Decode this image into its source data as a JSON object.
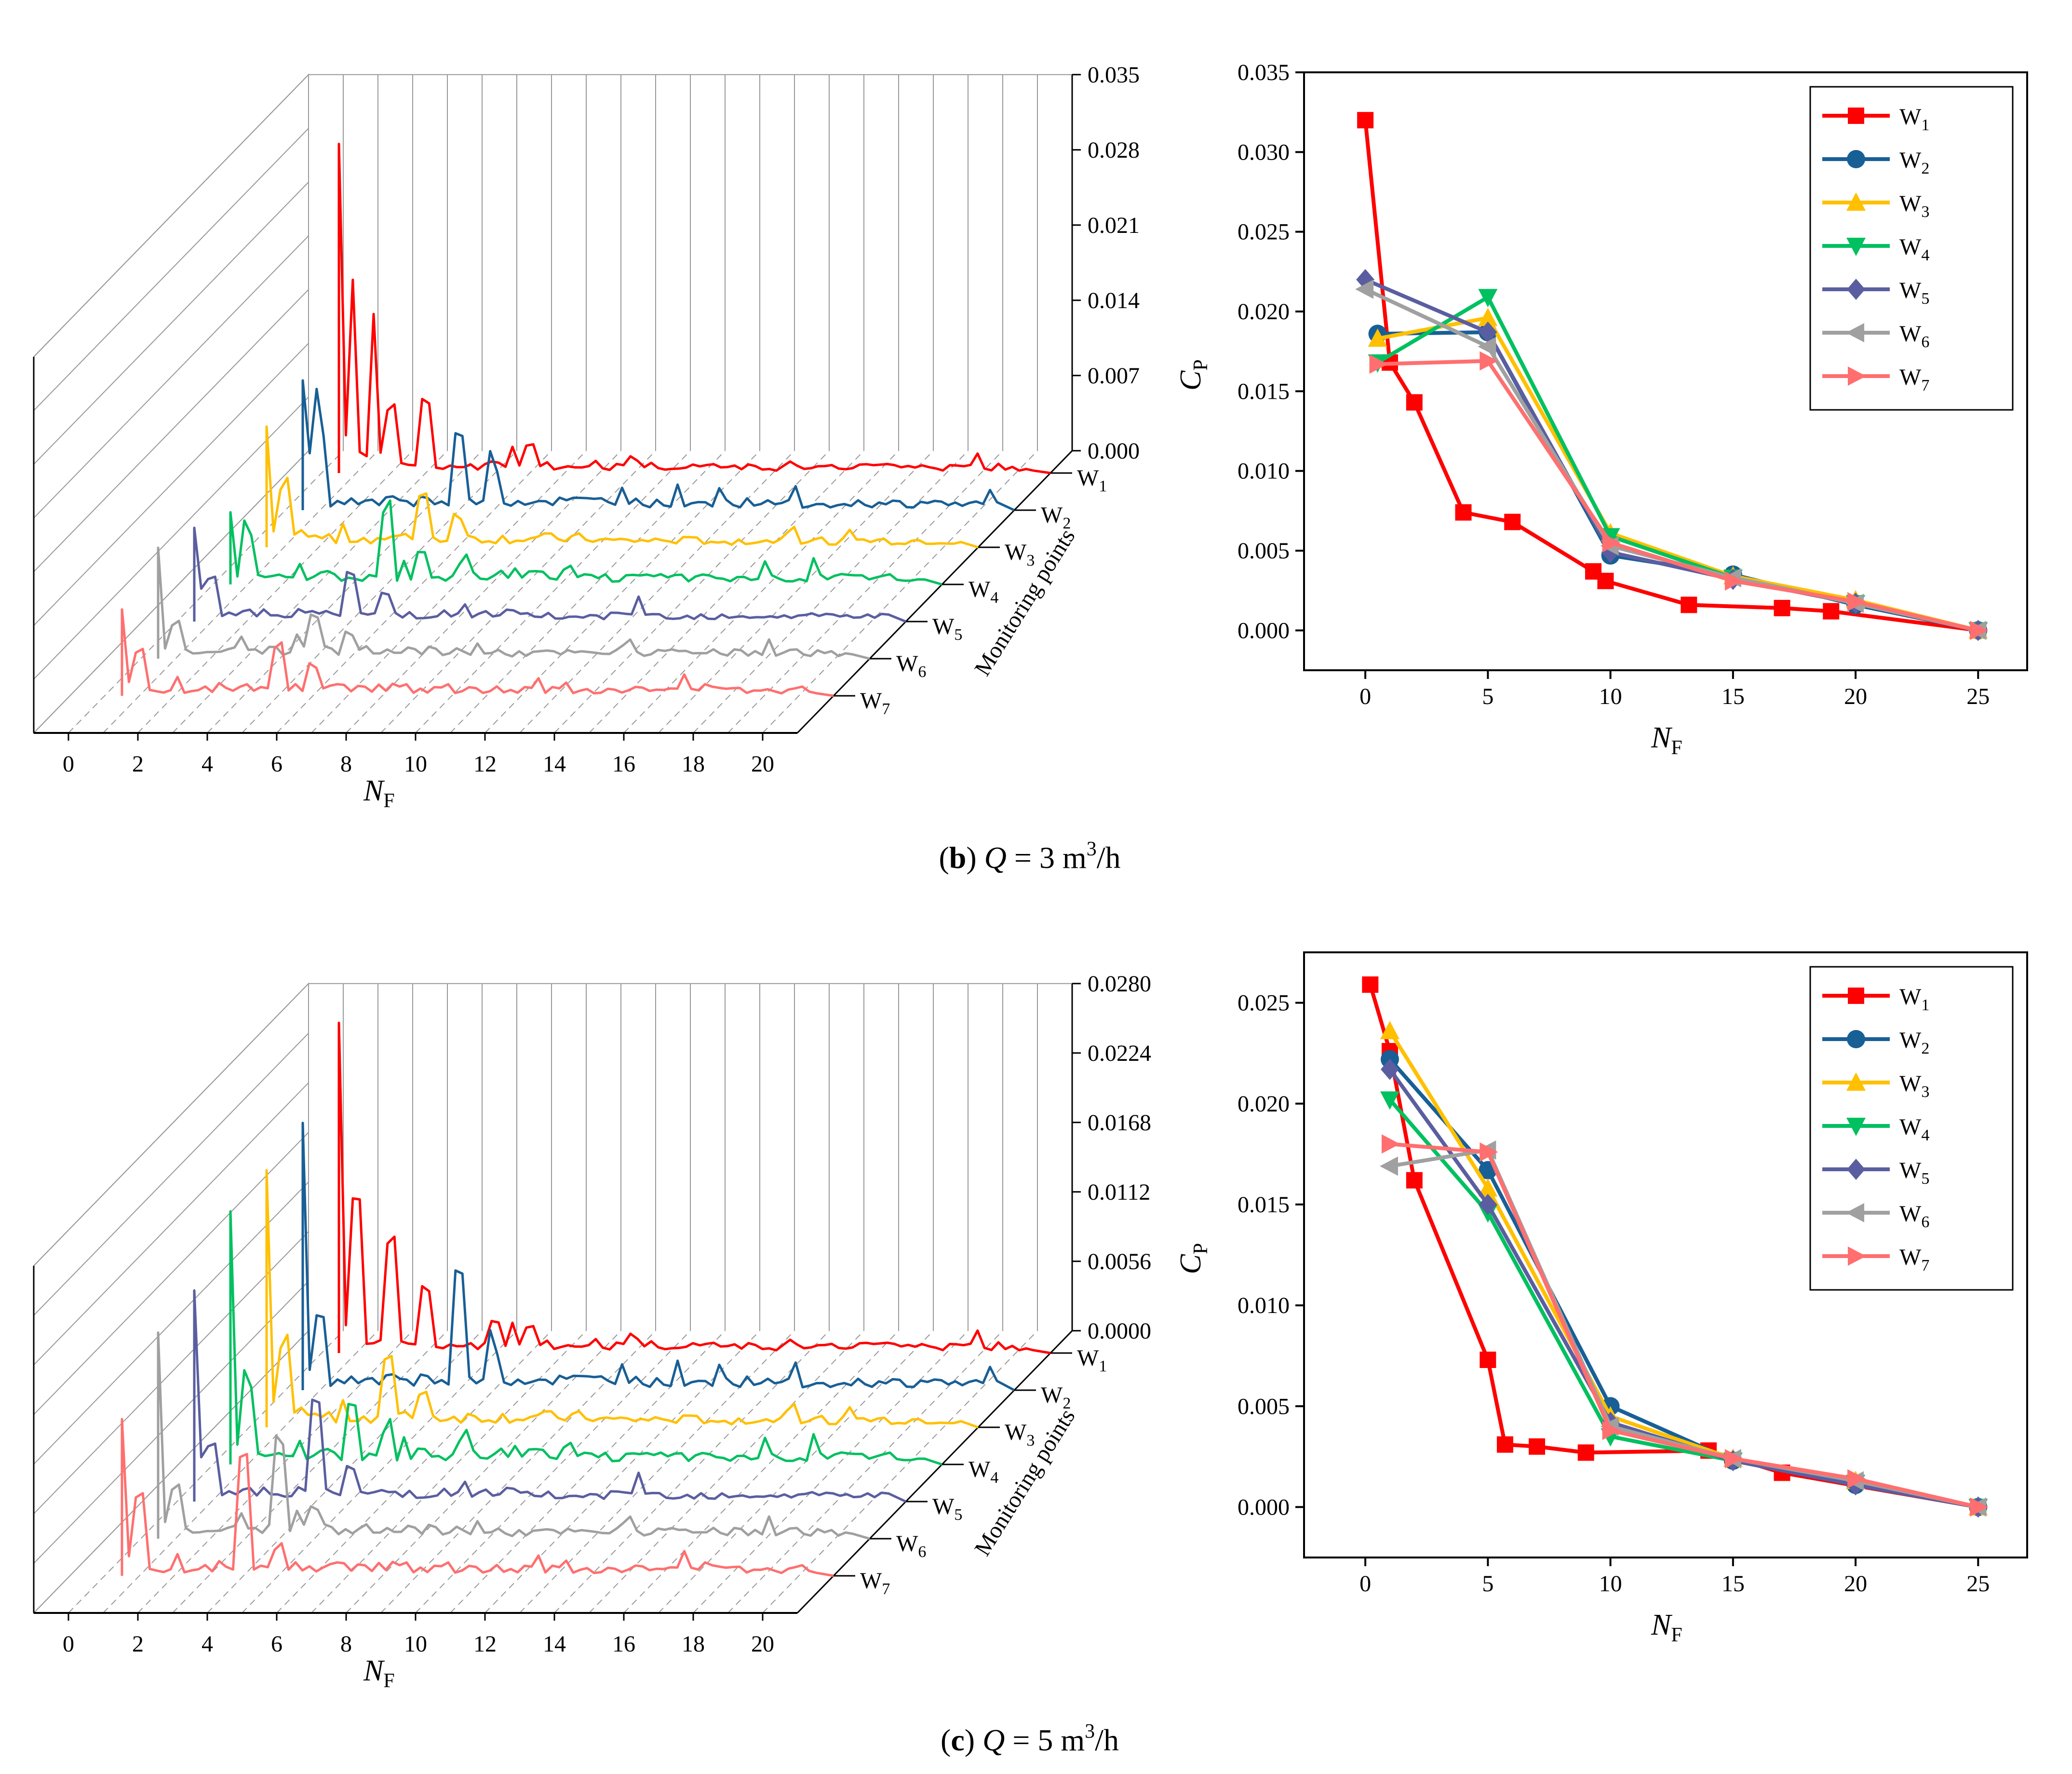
{
  "figure": {
    "captions": [
      {
        "letter": "b",
        "prefix": "(",
        "close": ")",
        "q": "Q",
        "equals": " = 3 m",
        "sup": "3",
        "unit": "/h"
      },
      {
        "letter": "c",
        "prefix": "(",
        "close": ")",
        "q": "Q",
        "equals": " = 5 m",
        "sup": "3",
        "unit": "/h"
      }
    ],
    "waterfall_axis_title": "Monitoring points",
    "axis_symbols": {
      "nf_main": "N",
      "nf_sub": "F",
      "cp_main": "C",
      "cp_sub": "P"
    },
    "colors": {
      "W1": "#ff0000",
      "W2": "#185f96",
      "W3": "#ffc000",
      "W4": "#00c060",
      "W5": "#5a5ea0",
      "W6": "#a0a0a0",
      "W7": "#ff6f6f",
      "axis": "#000000",
      "grid": "#999999"
    }
  },
  "chart_data": [
    {
      "id": "b_waterfall",
      "type": "line",
      "subtype": "waterfall-3d",
      "title": "(b) Q = 3 m3/h",
      "xlabel": "NF",
      "zlabel": "Monitoring points",
      "xlim": [
        -1,
        21
      ],
      "x_ticks": [
        "0",
        "2",
        "4",
        "6",
        "8",
        "10",
        "12",
        "14",
        "16",
        "18",
        "20"
      ],
      "zlim": [
        0,
        0.035
      ],
      "z_ticks": [
        "0.000",
        "0.007",
        "0.014",
        "0.021",
        "0.028",
        "0.035"
      ],
      "series_names": [
        "W1",
        "W2",
        "W3",
        "W4",
        "W5",
        "W6",
        "W7"
      ],
      "series": [
        {
          "name": "W1",
          "peaks": [
            [
              0.5,
              0.029
            ],
            [
              0.9,
              0.017
            ],
            [
              1.5,
              0.014
            ],
            [
              2,
              0.011
            ],
            [
              3,
              0.012
            ],
            [
              6,
              0.0045
            ]
          ],
          "floor": 0.0008
        },
        {
          "name": "W2",
          "peaks": [
            [
              0.5,
              0.0115
            ],
            [
              0.8,
              0.0085
            ],
            [
              1.0,
              0.012
            ],
            [
              5,
              0.012
            ],
            [
              6,
              0.0055
            ]
          ],
          "floor": 0.0009
        },
        {
          "name": "W3",
          "peaks": [
            [
              0.5,
              0.01
            ],
            [
              1.0,
              0.0085
            ],
            [
              5,
              0.0085
            ],
            [
              6,
              0.0045
            ]
          ],
          "floor": 0.0009
        },
        {
          "name": "W4",
          "peaks": [
            [
              0.5,
              0.0058
            ],
            [
              1.0,
              0.0072
            ],
            [
              5,
              0.0125
            ],
            [
              6,
              0.0035
            ]
          ],
          "floor": 0.0009
        },
        {
          "name": "W5",
          "peaks": [
            [
              0.5,
              0.0082
            ],
            [
              1.0,
              0.0072
            ],
            [
              5,
              0.007
            ],
            [
              6,
              0.0035
            ]
          ],
          "floor": 0.0008
        },
        {
          "name": "W6",
          "peaks": [
            [
              0.5,
              0.0092
            ],
            [
              1.0,
              0.0055
            ],
            [
              5,
              0.0065
            ],
            [
              6,
              0.0035
            ]
          ],
          "floor": 0.0008
        },
        {
          "name": "W7",
          "peaks": [
            [
              0.5,
              0.0072
            ],
            [
              1.0,
              0.0072
            ],
            [
              5,
              0.0082
            ],
            [
              6,
              0.0045
            ]
          ],
          "floor": 0.0008
        }
      ]
    },
    {
      "id": "b_cp",
      "type": "line",
      "title": "(b) Q = 3 m3/h",
      "xlabel": "NF",
      "ylabel": "CP",
      "xlim": [
        -2.5,
        27
      ],
      "ylim": [
        -0.0025,
        0.035
      ],
      "x_ticks": [
        0,
        5,
        10,
        15,
        20,
        25
      ],
      "y_ticks": [
        "0.000",
        "0.005",
        "0.010",
        "0.015",
        "0.020",
        "0.025",
        "0.030",
        "0.035"
      ],
      "legend": "top-right",
      "series": [
        {
          "name": "W1",
          "marker": "square",
          "x": [
            0,
            1,
            2,
            4,
            6,
            9.3,
            9.8,
            13.2,
            17,
            19,
            25
          ],
          "y": [
            0.032,
            0.0168,
            0.0143,
            0.0074,
            0.0068,
            0.0037,
            0.0031,
            0.0016,
            0.0014,
            0.0012,
            0.0
          ]
        },
        {
          "name": "W2",
          "marker": "circle",
          "x": [
            0.5,
            5,
            10,
            15,
            20,
            25
          ],
          "y": [
            0.0186,
            0.0187,
            0.0047,
            0.0035,
            0.0016,
            0.0
          ]
        },
        {
          "name": "W3",
          "marker": "triangle-up",
          "x": [
            0.5,
            5,
            10,
            15,
            20,
            25
          ],
          "y": [
            0.0183,
            0.0196,
            0.0061,
            0.0034,
            0.0019,
            0.0
          ]
        },
        {
          "name": "W4",
          "marker": "triangle-down",
          "x": [
            0.5,
            5,
            10,
            15,
            20,
            25
          ],
          "y": [
            0.0168,
            0.0209,
            0.0059,
            0.0033,
            0.0017,
            0.0
          ]
        },
        {
          "name": "W5",
          "marker": "diamond",
          "x": [
            0,
            5,
            10,
            15,
            20,
            25
          ],
          "y": [
            0.022,
            0.0187,
            0.0049,
            0.0032,
            0.0017,
            0.0
          ]
        },
        {
          "name": "W6",
          "marker": "triangle-left",
          "x": [
            0,
            5,
            10,
            15,
            20,
            25
          ],
          "y": [
            0.0214,
            0.0178,
            0.0053,
            0.0033,
            0.0017,
            0.0
          ]
        },
        {
          "name": "W7",
          "marker": "triangle-right",
          "x": [
            0.5,
            5,
            10,
            15,
            20,
            25
          ],
          "y": [
            0.0167,
            0.0169,
            0.0055,
            0.0031,
            0.0018,
            0.0
          ]
        }
      ]
    },
    {
      "id": "c_waterfall",
      "type": "line",
      "subtype": "waterfall-3d",
      "title": "(c) Q = 5 m3/h",
      "xlabel": "NF",
      "zlabel": "Monitoring points",
      "xlim": [
        -1,
        21
      ],
      "x_ticks": [
        "0",
        "2",
        "4",
        "6",
        "8",
        "10",
        "12",
        "14",
        "16",
        "18",
        "20"
      ],
      "zlim": [
        0,
        0.028
      ],
      "z_ticks": [
        "0.0000",
        "0.0056",
        "0.0112",
        "0.0168",
        "0.0224",
        "0.0280"
      ],
      "series_names": [
        "W1",
        "W2",
        "W3",
        "W4",
        "W5",
        "W6",
        "W7"
      ],
      "series": [
        {
          "name": "W1",
          "peaks": [
            [
              0.5,
              0.025
            ],
            [
              1.0,
              0.023
            ],
            [
              2,
              0.017
            ],
            [
              3,
              0.009
            ],
            [
              5,
              0.003
            ],
            [
              6,
              0.0035
            ]
          ],
          "floor": 0.0008
        },
        {
          "name": "W2",
          "peaks": [
            [
              0.5,
              0.021
            ],
            [
              1.0,
              0.01
            ],
            [
              5,
              0.017
            ],
            [
              6,
              0.0042
            ]
          ],
          "floor": 0.0009
        },
        {
          "name": "W3",
          "peaks": [
            [
              0.5,
              0.0195
            ],
            [
              1.0,
              0.0105
            ],
            [
              4,
              0.0095
            ],
            [
              5,
              0.0042
            ]
          ],
          "floor": 0.0009
        },
        {
          "name": "W4",
          "peaks": [
            [
              0.5,
              0.0195
            ],
            [
              1.0,
              0.0105
            ],
            [
              4,
              0.0085
            ],
            [
              5,
              0.0042
            ]
          ],
          "floor": 0.0009
        },
        {
          "name": "W5",
          "peaks": [
            [
              0.5,
              0.0165
            ],
            [
              1.0,
              0.0082
            ],
            [
              4,
              0.0145
            ],
            [
              5,
              0.0035
            ]
          ],
          "floor": 0.0008
        },
        {
          "name": "W6",
          "peaks": [
            [
              0.5,
              0.0155
            ],
            [
              1.0,
              0.0072
            ],
            [
              4,
              0.0145
            ],
            [
              5,
              0.0035
            ]
          ],
          "floor": 0.0008
        },
        {
          "name": "W7",
          "peaks": [
            [
              0.5,
              0.0118
            ],
            [
              1.0,
              0.0118
            ],
            [
              4,
              0.0175
            ],
            [
              5,
              0.0035
            ]
          ],
          "floor": 0.0008
        }
      ]
    },
    {
      "id": "c_cp",
      "type": "line",
      "title": "(c) Q = 5 m3/h",
      "xlabel": "NF",
      "ylabel": "CP",
      "xlim": [
        -2.5,
        27
      ],
      "ylim": [
        -0.0025,
        0.0275
      ],
      "x_ticks": [
        0,
        5,
        10,
        15,
        20,
        25
      ],
      "y_ticks": [
        "0.000",
        "0.005",
        "0.010",
        "0.015",
        "0.020",
        "0.025"
      ],
      "legend": "top-right",
      "series": [
        {
          "name": "W1",
          "marker": "square",
          "x": [
            0.2,
            1,
            2,
            5,
            5.7,
            7,
            9,
            14,
            17,
            25
          ],
          "y": [
            0.0259,
            0.0226,
            0.0162,
            0.0073,
            0.0031,
            0.003,
            0.0027,
            0.0028,
            0.0017,
            0.0
          ]
        },
        {
          "name": "W2",
          "marker": "circle",
          "x": [
            1,
            5,
            10,
            15,
            20,
            25
          ],
          "y": [
            0.0222,
            0.0167,
            0.005,
            0.0023,
            0.0011,
            0.0
          ]
        },
        {
          "name": "W3",
          "marker": "triangle-up",
          "x": [
            1,
            5,
            10,
            15,
            20,
            25
          ],
          "y": [
            0.0236,
            0.0158,
            0.0045,
            0.0024,
            0.0013,
            0.0
          ]
        },
        {
          "name": "W4",
          "marker": "triangle-down",
          "x": [
            1,
            5,
            10,
            15,
            20,
            25
          ],
          "y": [
            0.0202,
            0.0146,
            0.0035,
            0.0023,
            0.0012,
            0.0
          ]
        },
        {
          "name": "W5",
          "marker": "diamond",
          "x": [
            1,
            5,
            10,
            15,
            20,
            25
          ],
          "y": [
            0.0217,
            0.015,
            0.0042,
            0.0023,
            0.0011,
            0.0
          ]
        },
        {
          "name": "W6",
          "marker": "triangle-left",
          "x": [
            1,
            5,
            10,
            15,
            20,
            25
          ],
          "y": [
            0.0169,
            0.0177,
            0.004,
            0.0024,
            0.0013,
            0.0
          ]
        },
        {
          "name": "W7",
          "marker": "triangle-right",
          "x": [
            1,
            5,
            10,
            15,
            20,
            25
          ],
          "y": [
            0.018,
            0.0176,
            0.0038,
            0.0024,
            0.0014,
            0.0
          ]
        }
      ]
    }
  ]
}
